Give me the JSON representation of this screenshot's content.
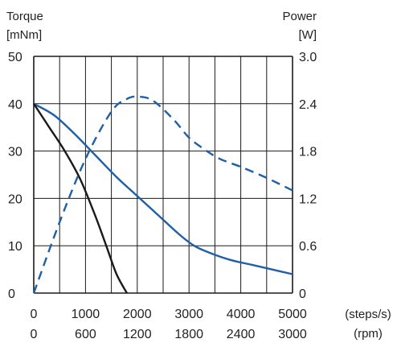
{
  "chart_data": {
    "type": "line",
    "left_axis_label": "Torque",
    "left_axis_unit": "[mNm]",
    "right_axis_label": "Power",
    "right_axis_unit": "[W]",
    "x_primary_unit": "(steps/s)",
    "x_secondary_unit": "(rpm)",
    "x_primary_ticks": [
      "0",
      "1000",
      "2000",
      "3000",
      "4000",
      "5000"
    ],
    "x_secondary_ticks": [
      "0",
      "600",
      "1200",
      "1800",
      "2400",
      "3000"
    ],
    "y_left_ticks": [
      "0",
      "10",
      "20",
      "30",
      "40",
      "50"
    ],
    "y_right_ticks": [
      "0",
      "0.6",
      "1.2",
      "1.8",
      "2.4",
      "3.0"
    ],
    "x_range": [
      0,
      5000
    ],
    "y_left_range": [
      0,
      50
    ],
    "y_right_range": [
      0,
      3.0
    ],
    "grid": true,
    "series": [
      {
        "axis": "left",
        "style": "solid",
        "color": "#1f5fa6",
        "x": [
          0,
          400,
          800,
          1200,
          1600,
          2000,
          2400,
          2800,
          3100,
          3400,
          3800,
          4200,
          4600,
          5000
        ],
        "y": [
          40,
          37.5,
          33.5,
          29,
          24.5,
          20.5,
          16.5,
          12.5,
          10,
          8.5,
          7,
          6,
          5,
          4
        ]
      },
      {
        "axis": "left",
        "style": "solid",
        "color": "#1a1a1a",
        "x": [
          0,
          300,
          600,
          900,
          1200,
          1400,
          1600,
          1800
        ],
        "y": [
          40,
          35,
          30,
          24,
          16,
          10,
          4,
          0
        ]
      },
      {
        "axis": "right",
        "style": "dashed",
        "color": "#1f5fa6",
        "x": [
          0,
          500,
          1000,
          1500,
          1800,
          2000,
          2300,
          2700,
          3000,
          3300,
          3600,
          4000,
          4500,
          5000
        ],
        "y": [
          0,
          0.9,
          1.7,
          2.3,
          2.46,
          2.49,
          2.44,
          2.2,
          1.97,
          1.82,
          1.7,
          1.6,
          1.46,
          1.3
        ]
      }
    ]
  }
}
